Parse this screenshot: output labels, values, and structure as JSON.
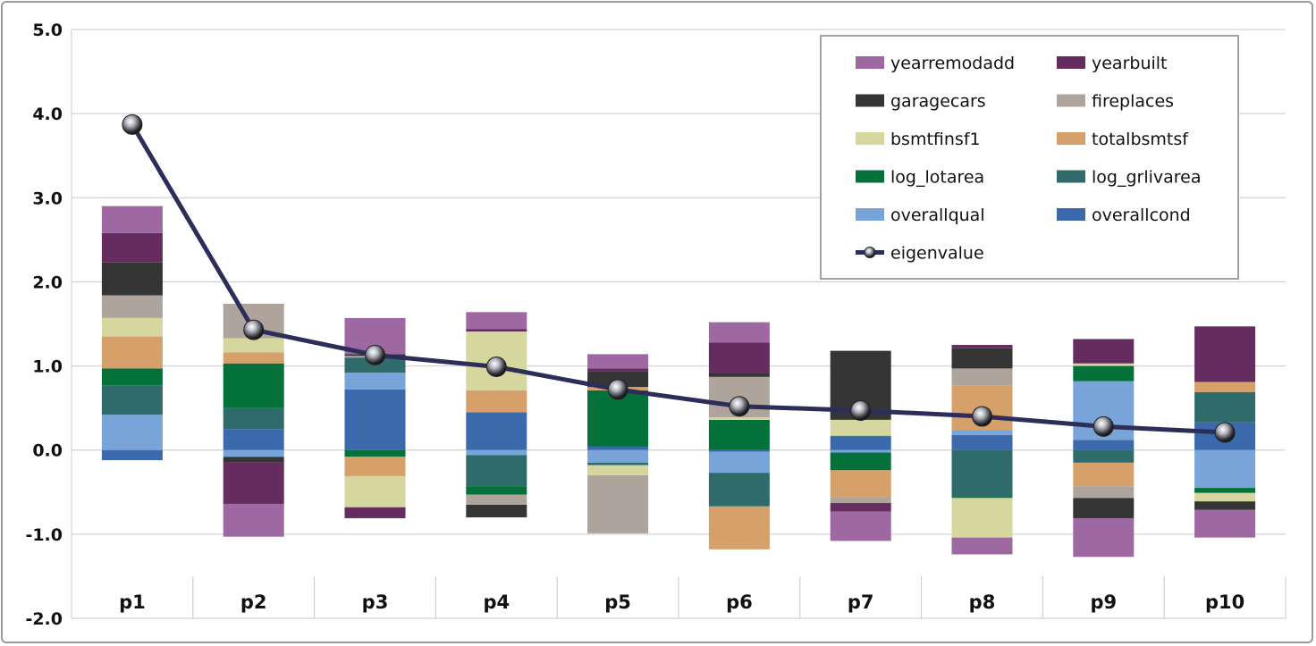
{
  "chart_data": {
    "type": "bar",
    "stacked": true,
    "categories": [
      "p1",
      "p2",
      "p3",
      "p4",
      "p5",
      "p6",
      "p7",
      "p8",
      "p9",
      "p10"
    ],
    "ylim": [
      -2.0,
      5.0
    ],
    "yticks": [
      "5.0",
      "4.0",
      "3.0",
      "2.0",
      "1.0",
      "0.0",
      "-1.0",
      "-2.0"
    ],
    "ytick_values": [
      5,
      4,
      3,
      2,
      1,
      0,
      -1,
      -2
    ],
    "grid": true,
    "legend_position": "top-right",
    "series": [
      {
        "name": "overallcond",
        "color": "#3c69ab",
        "values": [
          -0.12,
          0.25,
          0.72,
          0.45,
          0.04,
          -0.02,
          0.16,
          0.18,
          0.12,
          0.33
        ]
      },
      {
        "name": "overallqual",
        "color": "#79a4d9",
        "values": [
          0.42,
          -0.08,
          0.2,
          -0.06,
          -0.15,
          -0.25,
          -0.03,
          0.06,
          0.7,
          -0.45
        ]
      },
      {
        "name": "log_grlivarea",
        "color": "#2f6b6b",
        "values": [
          0.35,
          0.25,
          0.18,
          -0.37,
          -0.03,
          -0.4,
          0.01,
          -0.56,
          -0.15,
          0.36
        ]
      },
      {
        "name": "log_lotarea",
        "color": "#04703a",
        "values": [
          0.2,
          0.53,
          -0.08,
          -0.1,
          0.67,
          0.36,
          -0.21,
          -0.01,
          0.18,
          -0.06
        ]
      },
      {
        "name": "totalbsmtsf",
        "color": "#d6a06a",
        "values": [
          0.38,
          0.13,
          -0.23,
          0.26,
          0.04,
          -0.51,
          -0.32,
          0.53,
          -0.28,
          0.12
        ]
      },
      {
        "name": "bsmtfinsf1",
        "color": "#d6d79e",
        "values": [
          0.22,
          0.17,
          -0.37,
          0.7,
          -0.12,
          0.03,
          0.19,
          -0.47,
          0.03,
          -0.1
        ]
      },
      {
        "name": "fireplaces",
        "color": "#aea49c",
        "values": [
          0.27,
          0.41,
          0.02,
          -0.12,
          -0.69,
          0.48,
          -0.07,
          0.2,
          -0.14,
          0.0
        ]
      },
      {
        "name": "garagecars",
        "color": "#353535",
        "values": [
          0.39,
          -0.07,
          0.02,
          -0.15,
          0.19,
          0.05,
          0.82,
          0.24,
          -0.24,
          -0.1
        ]
      },
      {
        "name": "yearbuilt",
        "color": "#652c60",
        "values": [
          0.35,
          -0.49,
          -0.13,
          0.03,
          0.03,
          0.36,
          -0.1,
          0.04,
          0.29,
          0.66
        ]
      },
      {
        "name": "yearremodadd",
        "color": "#9e68a2",
        "values": [
          0.32,
          -0.39,
          0.43,
          0.2,
          0.17,
          0.24,
          -0.35,
          -0.2,
          -0.46,
          -0.33
        ]
      }
    ],
    "line_series": {
      "name": "eigenvalue",
      "color": "#2d2d5a",
      "values": [
        3.87,
        1.43,
        1.13,
        0.99,
        0.72,
        0.52,
        0.47,
        0.4,
        0.28,
        0.21
      ]
    },
    "legend_order": [
      "yearremodadd",
      "yearbuilt",
      "garagecars",
      "fireplaces",
      "bsmtfinsf1",
      "totalbsmtsf",
      "log_lotarea",
      "log_grlivarea",
      "overallqual",
      "overallcond",
      "eigenvalue"
    ]
  }
}
